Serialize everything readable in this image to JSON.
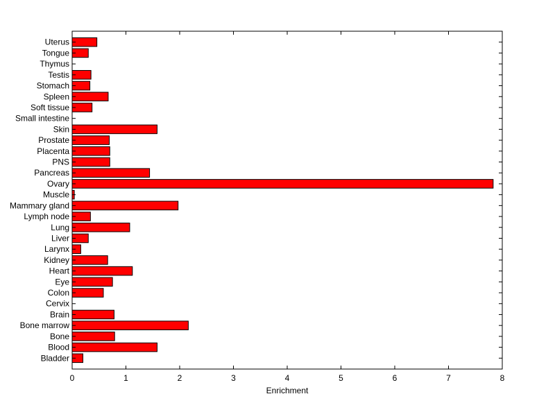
{
  "chart_data": {
    "type": "bar",
    "orientation": "horizontal",
    "title": "",
    "xlabel": "Enrichment",
    "ylabel": "",
    "xlim": [
      0,
      8
    ],
    "xticks": [
      "0",
      "1",
      "2",
      "3",
      "4",
      "5",
      "6",
      "7",
      "8"
    ],
    "grid": false,
    "bar_color": "#ff0000",
    "bar_edge_color": "#000000",
    "categories": [
      "Bladder",
      "Blood",
      "Bone",
      "Bone marrow",
      "Brain",
      "Cervix",
      "Colon",
      "Eye",
      "Heart",
      "Kidney",
      "Larynx",
      "Liver",
      "Lung",
      "Lymph node",
      "Mammary gland",
      "Muscle",
      "Ovary",
      "Pancreas",
      "PNS",
      "Placenta",
      "Prostate",
      "Skin",
      "Small intestine",
      "Soft tissue",
      "Spleen",
      "Stomach",
      "Testis",
      "Thymus",
      "Tongue",
      "Uterus"
    ],
    "values": [
      0.2,
      1.58,
      0.79,
      2.16,
      0.78,
      0.0,
      0.58,
      0.75,
      1.12,
      0.66,
      0.16,
      0.3,
      1.07,
      0.34,
      1.97,
      0.04,
      7.83,
      1.44,
      0.7,
      0.7,
      0.69,
      1.58,
      0.0,
      0.37,
      0.67,
      0.33,
      0.35,
      0.0,
      0.3,
      0.46
    ]
  }
}
